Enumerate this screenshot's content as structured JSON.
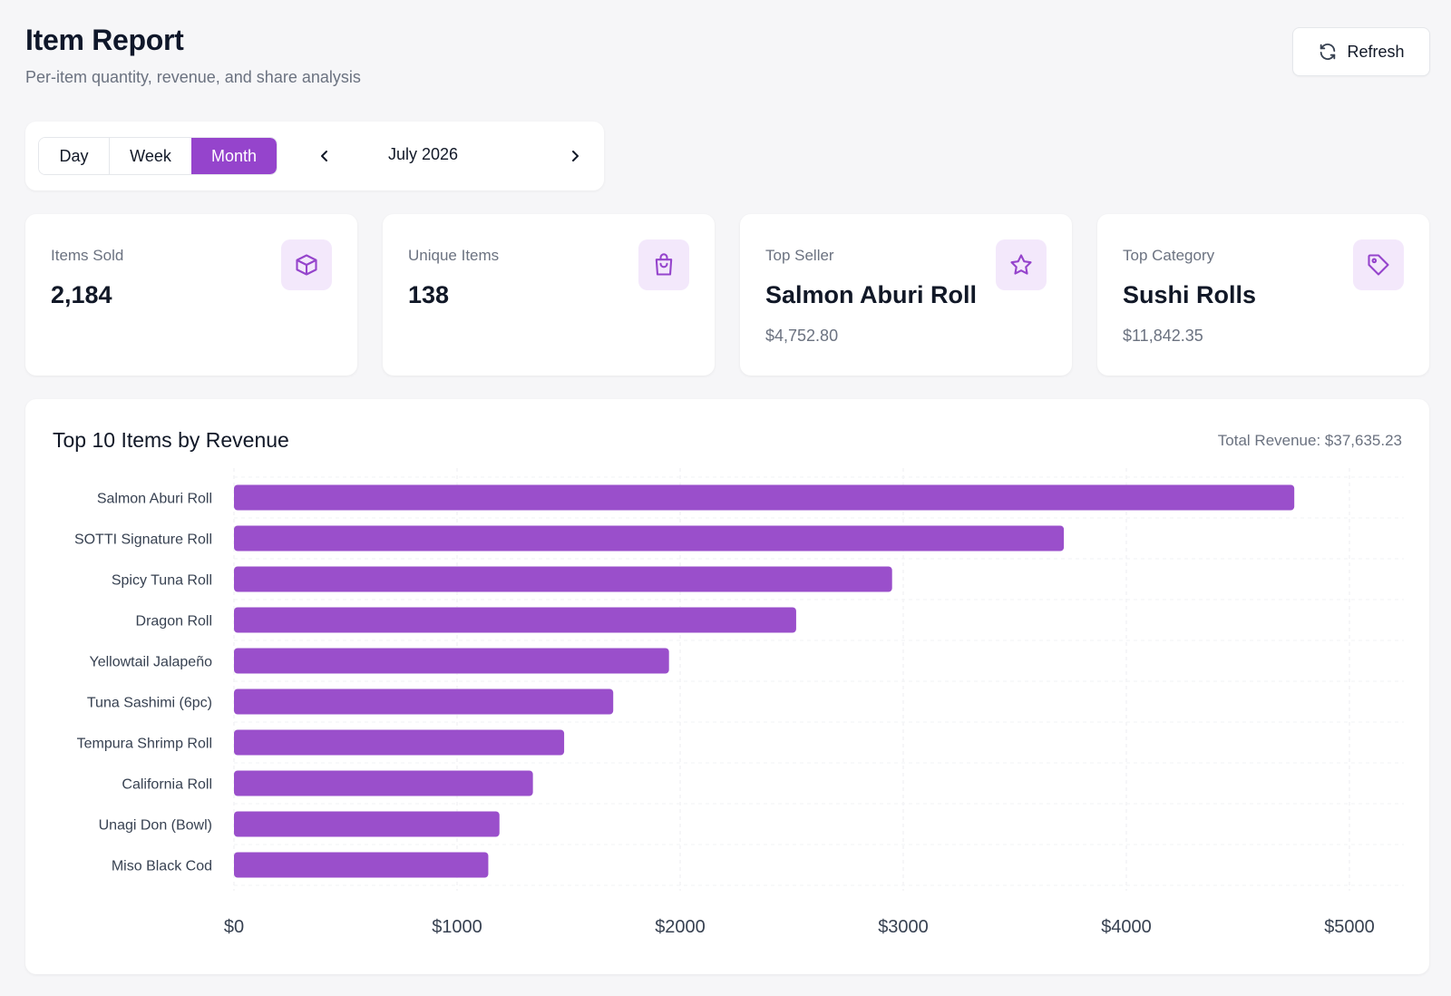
{
  "header": {
    "title": "Item Report",
    "subtitle": "Per-item quantity, revenue, and share analysis",
    "refresh_label": "Refresh"
  },
  "period": {
    "modes": [
      "Day",
      "Week",
      "Month"
    ],
    "active_mode": "Month",
    "label": "July 2026"
  },
  "cards": [
    {
      "label": "Items Sold",
      "value": "2,184",
      "sub": "",
      "icon": "box-icon"
    },
    {
      "label": "Unique Items",
      "value": "138",
      "sub": "",
      "icon": "shopping-bag-icon"
    },
    {
      "label": "Top Seller",
      "value": "Salmon Aburi Roll",
      "sub": "$4,752.80",
      "icon": "star-icon"
    },
    {
      "label": "Top Category",
      "value": "Sushi Rolls",
      "sub": "$11,842.35",
      "icon": "tag-icon"
    }
  ],
  "chart": {
    "title": "Top 10 Items by Revenue",
    "total_label": "Total Revenue: $37,635.23"
  },
  "chart_data": {
    "type": "bar",
    "orientation": "horizontal",
    "title": "Top 10 Items by Revenue",
    "categories": [
      "Salmon Aburi Roll",
      "SOTTI Signature Roll",
      "Spicy Tuna Roll",
      "Dragon Roll",
      "Yellowtail Jalapeño",
      "Tuna Sashimi (6pc)",
      "Tempura Shrimp Roll",
      "California Roll",
      "Unagi Don (Bowl)",
      "Miso Black Cod"
    ],
    "values": [
      4752.8,
      3720,
      2950,
      2520,
      1950,
      1700,
      1480,
      1340,
      1190,
      1140
    ],
    "xlim": [
      0,
      5000
    ],
    "xticks": [
      0,
      1000,
      2000,
      3000,
      4000,
      5000
    ],
    "xtick_labels": [
      "$0",
      "$1000",
      "$2000",
      "$3000",
      "$4000",
      "$5000"
    ],
    "grid": true,
    "bar_color": "#9a4fcb"
  },
  "colors": {
    "accent": "#9544cc",
    "icon_bg": "#f3e8fb"
  }
}
